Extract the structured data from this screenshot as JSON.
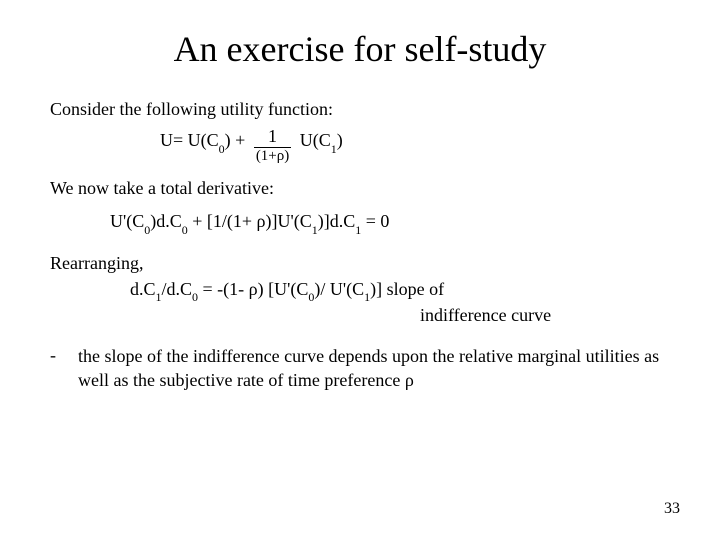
{
  "title": "An exercise for self-study",
  "p1": "Consider the following utility function:",
  "eq1_a": "U= U(C",
  "eq1_b": ") + ",
  "frac_num": "1",
  "frac_den_a": "(1+",
  "rho": "ρ",
  "frac_den_b": ")",
  "eq1_c": " U(C",
  "eq1_d": ")",
  "zero": "0",
  "one": "1",
  "p2": "We now take a total derivative:",
  "eq2_a": "U'(C",
  "eq2_b": ")d.C",
  "eq2_c": "  + [1/(1+ ",
  "eq2_d": ")]U'(C",
  "eq2_e": ")]d.C",
  "eq2_f": " = 0",
  "p3": "Rearranging,",
  "eq3_a": "d.C",
  "eq3_b": "/d.C",
  "eq3_c": " =  -(1- ",
  "eq3_d": ") [U'(C",
  "eq3_e": ")/ U'(C",
  "eq3_f": ")]   slope of",
  "eq3_g": "indifference curve",
  "bullet": "the slope of the indifference curve depends upon the relative marginal utilities as well as the subjective rate of time preference ",
  "dash": "-",
  "pageNumber": "33",
  "colors": {
    "bg": "#ffffff",
    "text": "#000000"
  },
  "fonts": {
    "title_size": 36,
    "body_size": 18,
    "sub_size": 12
  }
}
